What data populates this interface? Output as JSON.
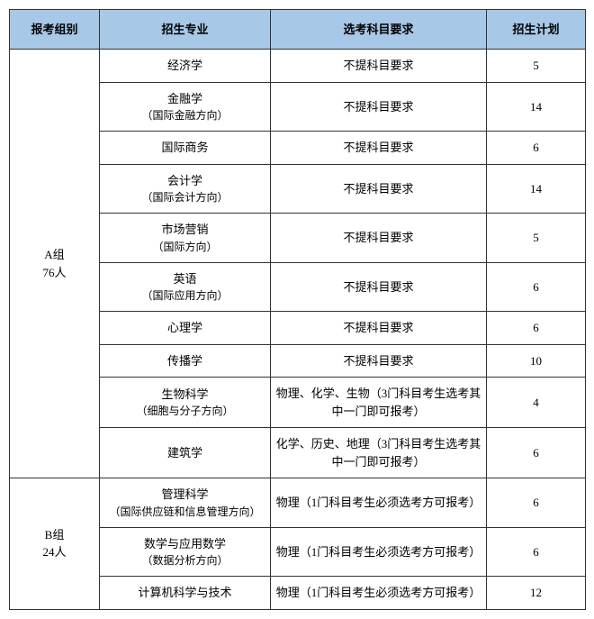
{
  "header": {
    "group": "报考组别",
    "major": "招生专业",
    "requirement": "选考科目要求",
    "plan": "招生计划"
  },
  "header_bg": "#a8c8e8",
  "border_color": "#333333",
  "groups": [
    {
      "label_line1": "A组",
      "label_line2": "76人",
      "rows": [
        {
          "major": "经济学",
          "major_sub": "",
          "requirement": "不提科目要求",
          "plan": "5"
        },
        {
          "major": "金融学",
          "major_sub": "（国际金融方向）",
          "requirement": "不提科目要求",
          "plan": "14"
        },
        {
          "major": "国际商务",
          "major_sub": "",
          "requirement": "不提科目要求",
          "plan": "6"
        },
        {
          "major": "会计学",
          "major_sub": "（国际会计方向）",
          "requirement": "不提科目要求",
          "plan": "14"
        },
        {
          "major": "市场营销",
          "major_sub": "（国际方向）",
          "requirement": "不提科目要求",
          "plan": "5"
        },
        {
          "major": "英语",
          "major_sub": "（国际应用方向）",
          "requirement": "不提科目要求",
          "plan": "6"
        },
        {
          "major": "心理学",
          "major_sub": "",
          "requirement": "不提科目要求",
          "plan": "6"
        },
        {
          "major": "传播学",
          "major_sub": "",
          "requirement": "不提科目要求",
          "plan": "10"
        },
        {
          "major": "生物科学",
          "major_sub": "（细胞与分子方向）",
          "requirement": "物理、化学、生物（3门科目考生选考其中一门即可报考）",
          "plan": "4"
        },
        {
          "major": "建筑学",
          "major_sub": "",
          "requirement": "化学、历史、地理（3门科目考生选考其中一门即可报考）",
          "plan": "6"
        }
      ]
    },
    {
      "label_line1": "B组",
      "label_line2": "24人",
      "rows": [
        {
          "major": "管理科学",
          "major_sub": "（国际供应链和信息管理方向）",
          "requirement": "物理（1门科目考生必须选考方可报考）",
          "plan": "6"
        },
        {
          "major": "数学与应用数学",
          "major_sub": "（数据分析方向）",
          "requirement": "物理（1门科目考生必须选考方可报考）",
          "plan": "6"
        },
        {
          "major": "计算机科学与技术",
          "major_sub": "",
          "requirement": "物理（1门科目考生必须选考方可报考）",
          "plan": "12"
        }
      ]
    }
  ]
}
